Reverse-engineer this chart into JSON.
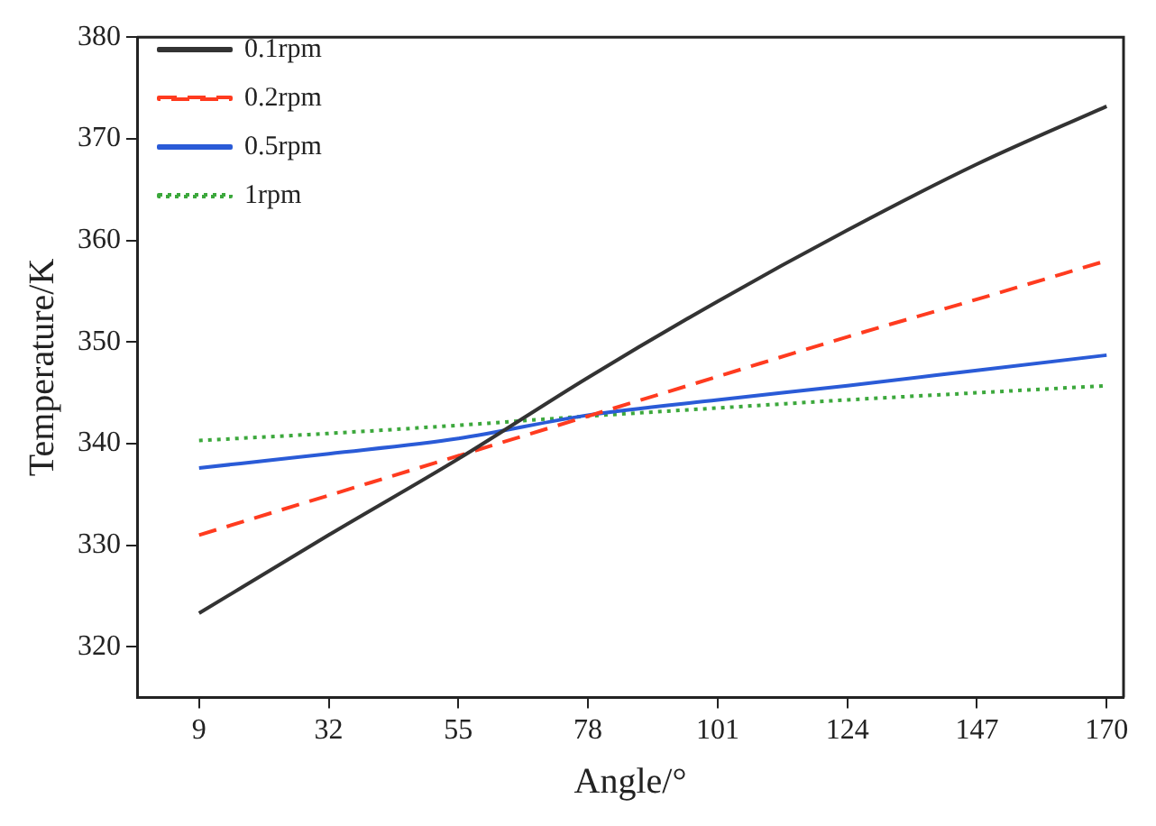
{
  "chart_data": {
    "type": "line",
    "xlabel": "Angle/°",
    "ylabel": "Temperature/K",
    "x": [
      9,
      32,
      55,
      78,
      101,
      124,
      147,
      170
    ],
    "xlim": [
      -2,
      173
    ],
    "xticks": [
      9,
      32,
      55,
      78,
      101,
      124,
      147,
      170
    ],
    "ylim": [
      315,
      380
    ],
    "yticks": [
      320,
      330,
      340,
      350,
      360,
      370,
      380
    ],
    "grid": false,
    "legend": "top left",
    "marker": "none",
    "series": [
      {
        "name": "0.1rpm",
        "color": "#333333",
        "line_style": "solid",
        "values": [
          323.3,
          331,
          338.5,
          346.5,
          354,
          361,
          367.5,
          373.2
        ]
      },
      {
        "name": "0.2rpm",
        "color": "#ff3b1f",
        "line_style": "dashed",
        "values": [
          331,
          334.9,
          338.8,
          342.7,
          346.6,
          350.5,
          354.2,
          358
        ]
      },
      {
        "name": "0.5rpm",
        "color": "#2a5bd7",
        "line_style": "solid",
        "values": [
          337.6,
          339,
          340.5,
          342.8,
          344.3,
          345.7,
          347.2,
          348.7
        ]
      },
      {
        "name": "1rpm",
        "color": "#3ca83c",
        "line_style": "dotted",
        "values": [
          340.3,
          341,
          341.8,
          342.7,
          343.5,
          344.3,
          345,
          345.7
        ]
      }
    ]
  }
}
